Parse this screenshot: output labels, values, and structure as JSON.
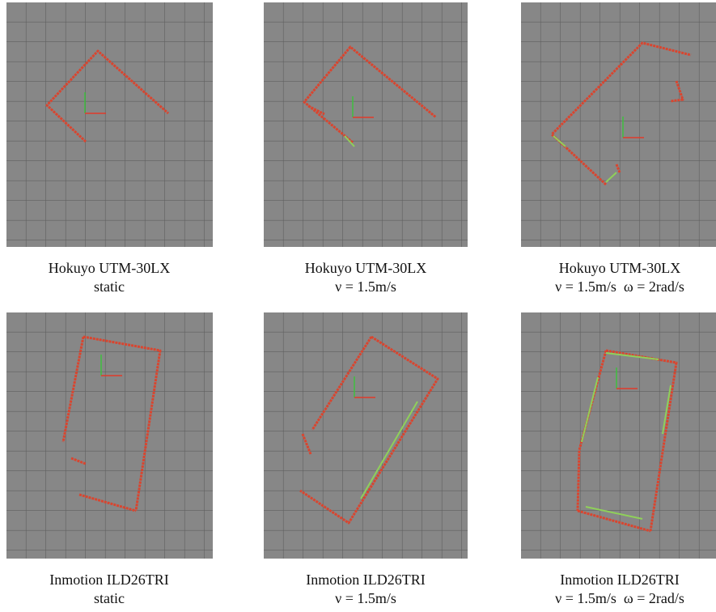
{
  "figure": {
    "panels": [
      {
        "caption": [
          "Hokuyo UTM-30LX",
          "static"
        ]
      },
      {
        "caption": [
          "Hokuyo UTM-30LX",
          "ν = 1.5m/s"
        ]
      },
      {
        "caption": [
          "Hokuyo UTM-30LX",
          "ν = 1.5m/s  ω = 2rad/s"
        ]
      },
      {
        "caption": [
          "Inmotion ILD26TRI",
          "static"
        ]
      },
      {
        "caption": [
          "Inmotion ILD26TRI",
          "ν = 1.5m/s"
        ]
      },
      {
        "caption": [
          "Inmotion ILD26TRI",
          "ν = 1.5m/s  ω = 2rad/s"
        ]
      }
    ]
  }
}
